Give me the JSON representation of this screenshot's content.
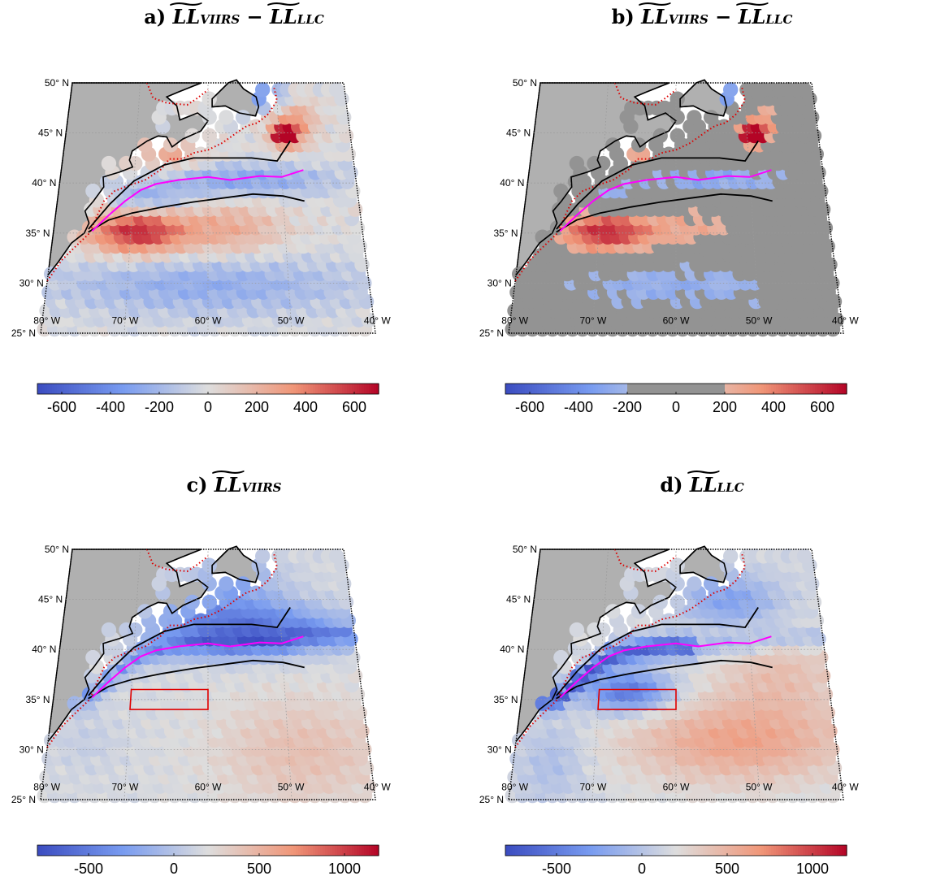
{
  "chart_data": [
    {
      "type": "heatmap",
      "panel_letter": "a)",
      "title_parts": {
        "lhs": "LL",
        "lhs_sub": "VIIRS",
        "op": "−",
        "rhs": "LL",
        "rhs_sub": "LLC"
      },
      "lat_labels": [
        "50",
        "45",
        "40",
        "35",
        "30",
        "25"
      ],
      "lon_labels": [
        "80",
        "70",
        "60",
        "50",
        "40"
      ],
      "lat_suffix": "N",
      "lon_suffix": "W",
      "colorbar": {
        "ticks": [
          "-600",
          "-400",
          "-200",
          "0",
          "200",
          "400",
          "600"
        ],
        "range": [
          -700,
          700
        ],
        "masked_range": null
      },
      "box": null,
      "pattern": "diff"
    },
    {
      "type": "heatmap",
      "panel_letter": "b)",
      "title_parts": {
        "lhs": "LL",
        "lhs_sub": "VIIRS",
        "op": "−",
        "rhs": "LL",
        "rhs_sub": "LLC"
      },
      "lat_labels": [
        "50",
        "45",
        "40",
        "35",
        "30",
        "25"
      ],
      "lon_labels": [
        "80",
        "70",
        "60",
        "50",
        "40"
      ],
      "lat_suffix": "N",
      "lon_suffix": "W",
      "colorbar": {
        "ticks": [
          "-600",
          "-400",
          "-200",
          "0",
          "200",
          "400",
          "600"
        ],
        "range": [
          -700,
          700
        ],
        "masked_range": [
          -200,
          200
        ]
      },
      "box": null,
      "pattern": "diff"
    },
    {
      "type": "heatmap",
      "panel_letter": "c)",
      "title_parts": {
        "lhs": "LL",
        "lhs_sub": "VIIRS",
        "op": "",
        "rhs": "",
        "rhs_sub": ""
      },
      "lat_labels": [
        "50",
        "45",
        "40",
        "35",
        "30",
        "25"
      ],
      "lon_labels": [
        "80",
        "70",
        "60",
        "50",
        "40"
      ],
      "lat_suffix": "N",
      "lon_suffix": "W",
      "colorbar": {
        "ticks": [
          "-500",
          "0",
          "500",
          "1000"
        ],
        "range": [
          -800,
          1200
        ],
        "masked_range": null
      },
      "box": {
        "lon": [
          -70,
          -60
        ],
        "lat": [
          34,
          36
        ]
      },
      "pattern": "viirs"
    },
    {
      "type": "heatmap",
      "panel_letter": "d)",
      "title_parts": {
        "lhs": "LL",
        "lhs_sub": "LLC",
        "op": "",
        "rhs": "",
        "rhs_sub": ""
      },
      "lat_labels": [
        "50",
        "45",
        "40",
        "35",
        "30",
        "25"
      ],
      "lon_labels": [
        "80",
        "70",
        "60",
        "50",
        "40"
      ],
      "lat_suffix": "N",
      "lon_suffix": "W",
      "colorbar": {
        "ticks": [
          "-500",
          "0",
          "500",
          "1000"
        ],
        "range": [
          -800,
          1200
        ],
        "masked_range": null
      },
      "box": {
        "lon": [
          -70,
          -60
        ],
        "lat": [
          34,
          36
        ]
      },
      "pattern": "llc"
    }
  ],
  "colors": {
    "land": "#b0b0b0",
    "masked": "#939393",
    "front_black": "#000000",
    "front_magenta": "#ff00ff",
    "isobath_red": "#dd0000",
    "cmap_low": "#3b4cc0",
    "cmap_mid": "#dddddd",
    "cmap_high": "#b40426"
  }
}
